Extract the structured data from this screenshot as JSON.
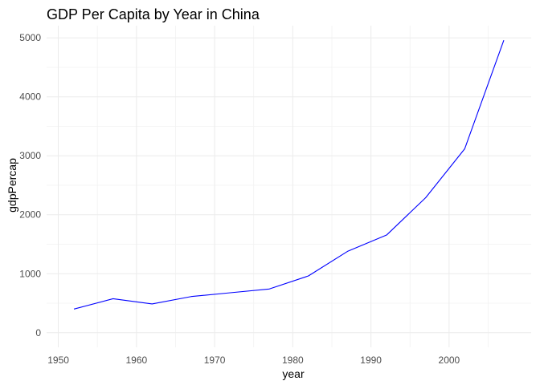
{
  "chart_data": {
    "type": "line",
    "title": "GDP Per Capita by Year in China",
    "xlabel": "year",
    "ylabel": "gdpPercap",
    "x": [
      1952,
      1957,
      1962,
      1967,
      1972,
      1977,
      1982,
      1987,
      1992,
      1997,
      2002,
      2007
    ],
    "series": [
      {
        "values": [
          400.45,
          575.99,
          487.67,
          612.71,
          676.9,
          741.24,
          962.42,
          1378.9,
          1655.78,
          2289.23,
          3119.28,
          4959.11
        ],
        "color": "#0000ff"
      }
    ],
    "xlim": [
      1948.5,
      2010.5
    ],
    "ylim": [
      -248,
      5207
    ],
    "x_major_ticks": [
      1950,
      1960,
      1970,
      1980,
      1990,
      2000
    ],
    "x_minor_ticks": [
      1955,
      1965,
      1975,
      1985,
      1995,
      2005
    ],
    "x_tick_labels": [
      "1950",
      "1960",
      "1970",
      "1980",
      "1990",
      "2000"
    ],
    "y_major_ticks": [
      0,
      1000,
      2000,
      3000,
      4000,
      5000
    ],
    "y_minor_ticks": [
      500,
      1500,
      2500,
      3500,
      4500
    ],
    "y_tick_labels": [
      "0",
      "1000",
      "2000",
      "3000",
      "4000",
      "5000"
    ],
    "grid": true,
    "legend": "none"
  },
  "colors": {
    "background": "#ffffff",
    "grid_major": "#ebebeb",
    "grid_minor": "#f2f2f2",
    "tick_text": "#4d4d4d",
    "text": "#000000",
    "line": "#0000ff"
  }
}
